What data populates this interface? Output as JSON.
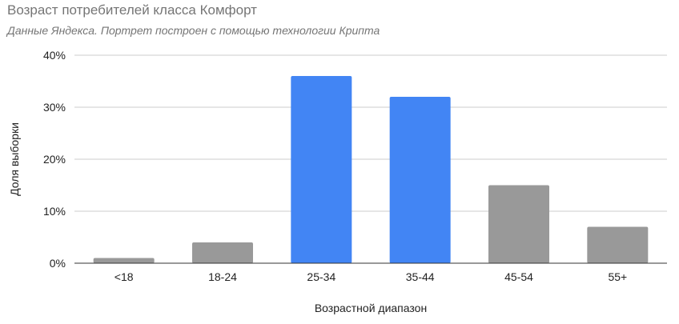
{
  "chart_data": {
    "type": "bar",
    "title": "Возраст потребителей класса Комфорт",
    "subtitle": "Данные Яндекса. Портрет построен с помощью технологии Крипта",
    "xlabel": "Возрастной диапазон",
    "ylabel": "Доля выборки",
    "categories": [
      "<18",
      "18-24",
      "25-34",
      "35-44",
      "45-54",
      "55+"
    ],
    "values": [
      1,
      4,
      36,
      32,
      15,
      7
    ],
    "ylim": [
      0,
      40
    ],
    "yticks": [
      0,
      10,
      20,
      30,
      40
    ],
    "ytick_labels": [
      "0%",
      "10%",
      "20%",
      "30%",
      "40%"
    ],
    "grid": true,
    "colors": {
      "bars": [
        "#999999",
        "#999999",
        "#4285f4",
        "#4285f4",
        "#999999",
        "#999999"
      ],
      "grid": "#cccccc",
      "axis": "#333333"
    }
  }
}
